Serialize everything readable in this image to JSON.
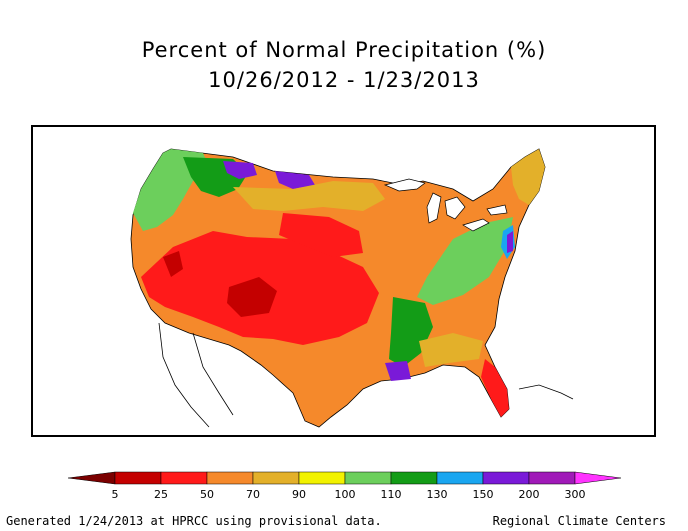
{
  "title": "Percent of Normal Precipitation (%)",
  "date_range": "10/26/2012 - 1/23/2013",
  "legend": {
    "thresholds": [
      "5",
      "25",
      "50",
      "70",
      "90",
      "100",
      "110",
      "130",
      "150",
      "200",
      "300"
    ],
    "colors": [
      "#7b0000",
      "#c40000",
      "#ff1a1a",
      "#f5892b",
      "#e3b02a",
      "#f2f200",
      "#6ccf5c",
      "#139c17",
      "#1aa6f0",
      "#7a1ad8",
      "#a01ab8",
      "#ff33ff"
    ]
  },
  "footer": {
    "generated": "Generated 1/24/2013 at HPRCC using provisional data.",
    "credit": "Regional Climate Centers"
  }
}
